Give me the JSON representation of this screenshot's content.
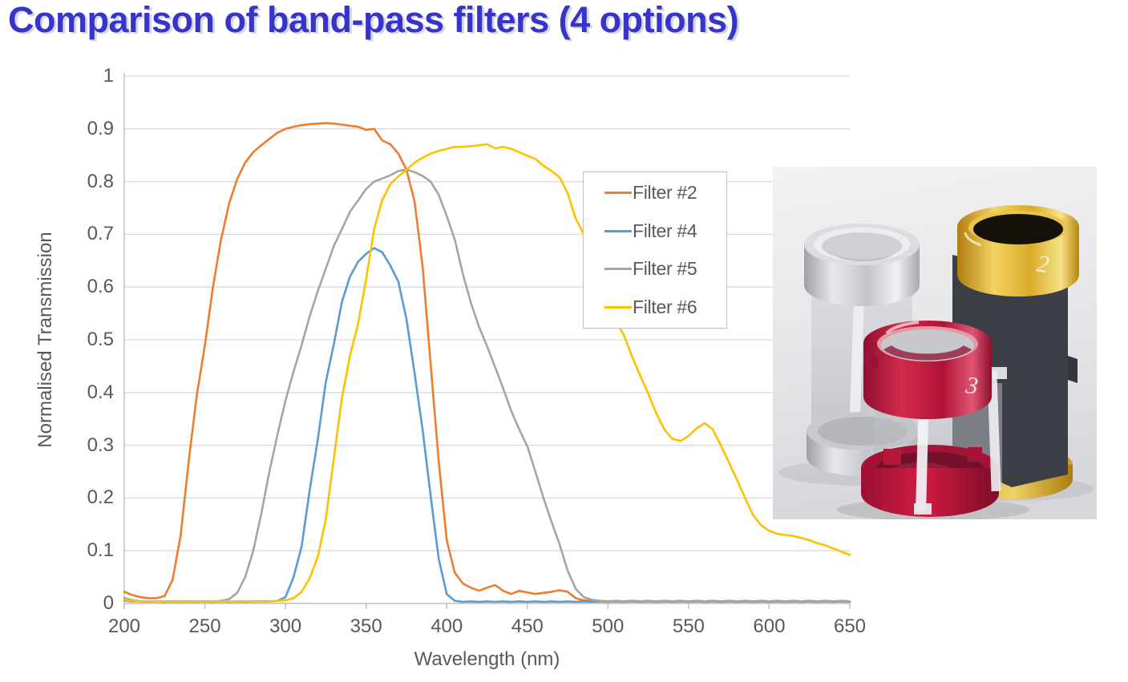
{
  "title": {
    "text": "Comparison of band-pass filters (4 options)",
    "color": "#3634c9"
  },
  "chart_data": {
    "type": "line",
    "title": "",
    "xlabel": "Wavelength (nm)",
    "ylabel": "Normalised Transmission",
    "x_range": [
      200,
      650
    ],
    "y_range": [
      0,
      1
    ],
    "x_tick_labels": [
      "200",
      "250",
      "300",
      "350",
      "400",
      "450",
      "500",
      "550",
      "600",
      "650"
    ],
    "y_tick_labels": [
      "0",
      "0.1",
      "0.2",
      "0.3",
      "0.4",
      "0.5",
      "0.6",
      "0.7",
      "0.8",
      "0.9",
      "1"
    ],
    "grid": "horizontal",
    "legend_position": "inside-upper-right",
    "x_nm": [
      200,
      205,
      210,
      215,
      220,
      225,
      230,
      235,
      240,
      245,
      250,
      255,
      260,
      265,
      270,
      275,
      280,
      285,
      290,
      295,
      300,
      305,
      310,
      315,
      320,
      325,
      330,
      335,
      340,
      345,
      350,
      355,
      360,
      365,
      370,
      375,
      380,
      385,
      390,
      395,
      400,
      405,
      410,
      415,
      420,
      425,
      430,
      435,
      440,
      445,
      450,
      455,
      460,
      465,
      470,
      475,
      480,
      485,
      490,
      495,
      500,
      505,
      510,
      515,
      520,
      525,
      530,
      535,
      540,
      545,
      550,
      555,
      560,
      565,
      570,
      575,
      580,
      585,
      590,
      595,
      600,
      605,
      610,
      615,
      620,
      625,
      630,
      635,
      640,
      645,
      650
    ],
    "series": [
      {
        "name": "Filter #2",
        "color": "#ED7D31",
        "values": [
          0.022,
          0.016,
          0.012,
          0.01,
          0.01,
          0.014,
          0.045,
          0.13,
          0.27,
          0.395,
          0.49,
          0.6,
          0.69,
          0.758,
          0.805,
          0.836,
          0.856,
          0.869,
          0.881,
          0.893,
          0.9,
          0.904,
          0.907,
          0.909,
          0.91,
          0.911,
          0.91,
          0.908,
          0.906,
          0.904,
          0.898,
          0.9,
          0.878,
          0.871,
          0.853,
          0.823,
          0.763,
          0.64,
          0.455,
          0.27,
          0.12,
          0.058,
          0.038,
          0.03,
          0.024,
          0.03,
          0.035,
          0.024,
          0.018,
          0.024,
          0.021,
          0.018,
          0.02,
          0.022,
          0.025,
          0.022,
          0.01,
          0.006,
          0.005,
          0.005,
          0.004,
          0.005,
          0.004,
          0.005,
          0.004,
          0.005,
          0.004,
          0.005,
          0.004,
          0.005,
          0.004,
          0.005,
          0.004,
          0.005,
          0.004,
          0.005,
          0.004,
          0.005,
          0.004,
          0.005,
          0.004,
          0.005,
          0.004,
          0.005,
          0.004,
          0.005,
          0.004,
          0.005,
          0.004,
          0.005,
          0.004
        ]
      },
      {
        "name": "Filter #4",
        "color": "#5B9BD5",
        "values": [
          0.01,
          0.006,
          0.004,
          0.003,
          0.004,
          0.003,
          0.004,
          0.003,
          0.004,
          0.003,
          0.004,
          0.003,
          0.004,
          0.003,
          0.004,
          0.003,
          0.004,
          0.004,
          0.004,
          0.005,
          0.012,
          0.05,
          0.108,
          0.215,
          0.31,
          0.42,
          0.492,
          0.572,
          0.62,
          0.648,
          0.663,
          0.674,
          0.666,
          0.641,
          0.61,
          0.54,
          0.438,
          0.33,
          0.205,
          0.085,
          0.018,
          0.005,
          0.003,
          0.004,
          0.003,
          0.004,
          0.003,
          0.004,
          0.003,
          0.004,
          0.003,
          0.004,
          0.003,
          0.004,
          0.003,
          0.004,
          0.003,
          0.004,
          0.003,
          0.004,
          0.003,
          0.004,
          0.003,
          0.004,
          0.003,
          0.004,
          0.003,
          0.004,
          0.003,
          0.004,
          0.003,
          0.004,
          0.003,
          0.004,
          0.003,
          0.004,
          0.003,
          0.004,
          0.003,
          0.004,
          0.003,
          0.004,
          0.003,
          0.004,
          0.003,
          0.004,
          0.003,
          0.004,
          0.003,
          0.004,
          0.003
        ]
      },
      {
        "name": "Filter #5",
        "color": "#A5A5A5",
        "values": [
          0.005,
          0.004,
          0.004,
          0.004,
          0.004,
          0.004,
          0.004,
          0.004,
          0.004,
          0.004,
          0.004,
          0.004,
          0.005,
          0.008,
          0.02,
          0.05,
          0.1,
          0.17,
          0.25,
          0.32,
          0.385,
          0.44,
          0.49,
          0.545,
          0.592,
          0.635,
          0.678,
          0.71,
          0.743,
          0.764,
          0.786,
          0.8,
          0.806,
          0.812,
          0.82,
          0.823,
          0.818,
          0.811,
          0.8,
          0.775,
          0.735,
          0.69,
          0.625,
          0.57,
          0.525,
          0.488,
          0.448,
          0.408,
          0.365,
          0.33,
          0.298,
          0.25,
          0.2,
          0.155,
          0.112,
          0.062,
          0.028,
          0.012,
          0.007,
          0.005,
          0.004,
          0.005,
          0.004,
          0.005,
          0.004,
          0.005,
          0.004,
          0.005,
          0.004,
          0.005,
          0.004,
          0.005,
          0.004,
          0.005,
          0.004,
          0.005,
          0.004,
          0.005,
          0.004,
          0.005,
          0.004,
          0.005,
          0.004,
          0.005,
          0.004,
          0.005,
          0.004,
          0.005,
          0.004,
          0.005,
          0.004
        ]
      },
      {
        "name": "Filter #6",
        "color": "#FFC000",
        "values": [
          0.008,
          0.005,
          0.004,
          0.004,
          0.004,
          0.004,
          0.004,
          0.004,
          0.004,
          0.004,
          0.004,
          0.004,
          0.004,
          0.004,
          0.004,
          0.004,
          0.004,
          0.004,
          0.004,
          0.005,
          0.006,
          0.01,
          0.022,
          0.048,
          0.088,
          0.16,
          0.275,
          0.39,
          0.47,
          0.53,
          0.615,
          0.71,
          0.765,
          0.795,
          0.81,
          0.822,
          0.836,
          0.845,
          0.853,
          0.858,
          0.862,
          0.866,
          0.866,
          0.867,
          0.869,
          0.871,
          0.863,
          0.866,
          0.862,
          0.856,
          0.849,
          0.843,
          0.83,
          0.82,
          0.808,
          0.778,
          0.73,
          0.7,
          0.655,
          0.61,
          0.565,
          0.535,
          0.508,
          0.468,
          0.432,
          0.398,
          0.36,
          0.33,
          0.312,
          0.308,
          0.318,
          0.332,
          0.342,
          0.33,
          0.3,
          0.268,
          0.235,
          0.2,
          0.168,
          0.148,
          0.138,
          0.132,
          0.13,
          0.128,
          0.124,
          0.12,
          0.114,
          0.11,
          0.104,
          0.098,
          0.092
        ]
      }
    ]
  },
  "inset": {
    "badge_gold": "2",
    "badge_red": "3"
  }
}
